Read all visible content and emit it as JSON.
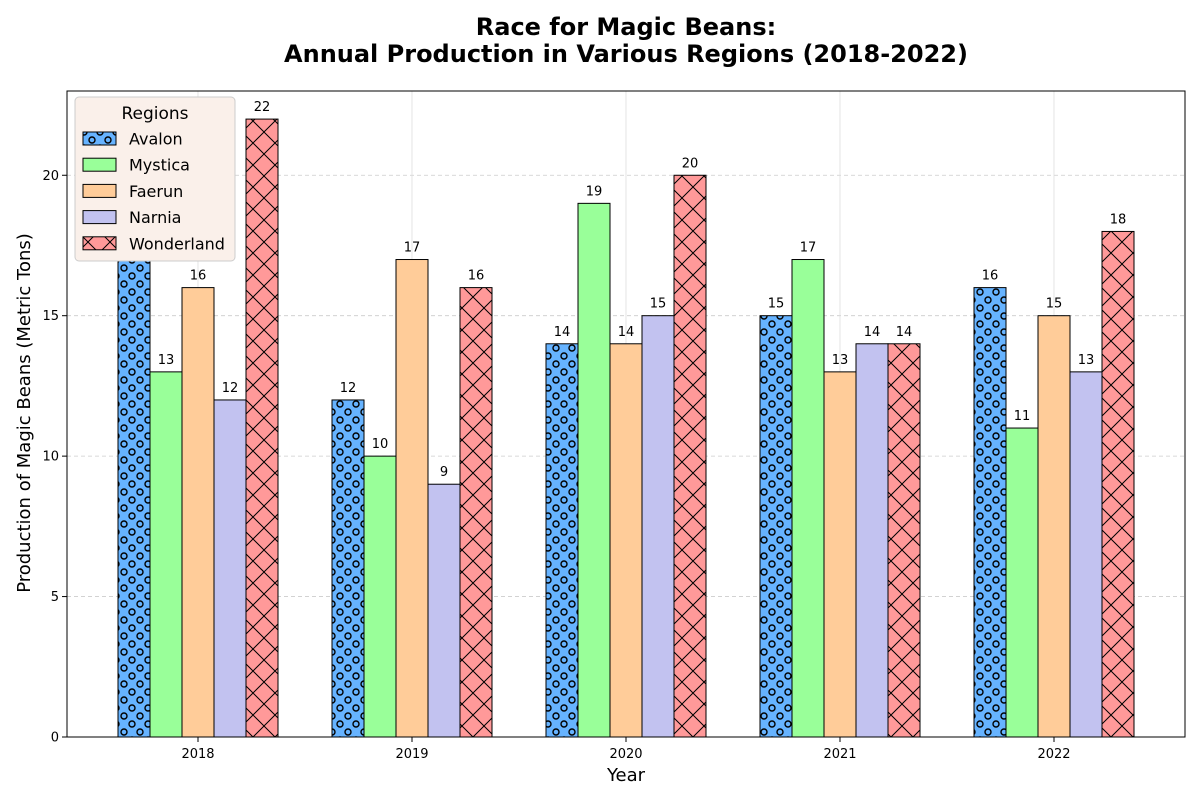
{
  "chart_data": {
    "type": "bar",
    "title_line1": "Race for Magic Beans:",
    "title_line2": "Annual Production in Various Regions (2018-2022)",
    "xlabel": "Year",
    "ylabel": "Production of Magic Beans (Metric Tons)",
    "categories": [
      "2018",
      "2019",
      "2020",
      "2021",
      "2022"
    ],
    "ylim": [
      0,
      23
    ],
    "yticks": [
      0,
      5,
      10,
      15,
      20
    ],
    "grid": true,
    "legend_title": "Regions",
    "legend_position": "top-left",
    "series": [
      {
        "name": "Avalon",
        "values": [
          18,
          12,
          14,
          15,
          16
        ],
        "color": "#66b3ff",
        "pattern": "circles"
      },
      {
        "name": "Mystica",
        "values": [
          13,
          10,
          19,
          17,
          11
        ],
        "color": "#99ff99",
        "pattern": "none"
      },
      {
        "name": "Faerun",
        "values": [
          16,
          17,
          14,
          13,
          15
        ],
        "color": "#ffcc99",
        "pattern": "none"
      },
      {
        "name": "Narnia",
        "values": [
          12,
          9,
          15,
          14,
          13
        ],
        "color": "#c2c2f0",
        "pattern": "none"
      },
      {
        "name": "Wonderland",
        "values": [
          22,
          16,
          20,
          14,
          18
        ],
        "color": "#ff9999",
        "pattern": "crosshatch"
      }
    ]
  }
}
